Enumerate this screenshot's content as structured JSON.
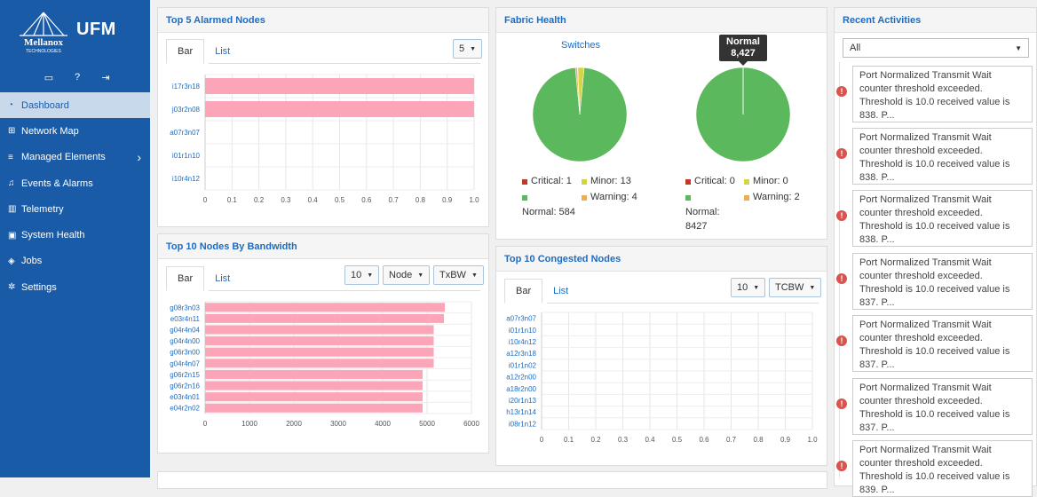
{
  "brand": {
    "logo_text": "Mellanox TECHNOLOGIES",
    "app_name": "UFM"
  },
  "header_icons": [
    "monitor-icon",
    "help-icon",
    "logout-icon"
  ],
  "nav": [
    {
      "label": "Dashboard",
      "icon": "dashboard-icon",
      "active": true
    },
    {
      "label": "Network Map",
      "icon": "sitemap-icon"
    },
    {
      "label": "Managed Elements",
      "icon": "list-icon",
      "has_submenu": true
    },
    {
      "label": "Events & Alarms",
      "icon": "bell-icon"
    },
    {
      "label": "Telemetry",
      "icon": "bar-chart-icon"
    },
    {
      "label": "System Health",
      "icon": "medkit-icon"
    },
    {
      "label": "Jobs",
      "icon": "cube-icon"
    },
    {
      "label": "Settings",
      "icon": "gear-icon"
    }
  ],
  "alarmed": {
    "title": "Top 5 Alarmed Nodes",
    "tab_bar": "Bar",
    "tab_list": "List",
    "count_value": "5"
  },
  "bandwidth": {
    "title": "Top 10 Nodes By Bandwidth",
    "tab_bar": "Bar",
    "tab_list": "List",
    "count_value": "10",
    "type_value": "Node",
    "metric_value": "TxBW"
  },
  "fabric": {
    "title": "Fabric Health",
    "switches_label": "Switches",
    "tooltip_title": "Normal",
    "tooltip_value": "8,427",
    "left_legend": {
      "critical": "Critical: 1",
      "minor": "Minor: 13",
      "normal": "Normal: 584",
      "warning": "Warning: 4"
    },
    "right_legend": {
      "critical": "Critical: 0",
      "minor": "Minor: 0",
      "normal_1": "Normal:",
      "normal_2": "8427",
      "warning": "Warning: 2"
    }
  },
  "congested": {
    "title": "Top 10 Congested Nodes",
    "tab_bar": "Bar",
    "tab_list": "List",
    "count_value": "10",
    "metric_value": "TCBW"
  },
  "activities": {
    "title": "Recent Activities",
    "filter_value": "All",
    "items": [
      "Port Normalized Transmit Wait counter threshold exceeded. Threshold is 10.0 received value is 838. P...",
      "Port Normalized Transmit Wait counter threshold exceeded. Threshold is 10.0 received value is 838. P...",
      "Port Normalized Transmit Wait counter threshold exceeded. Threshold is 10.0 received value is 838. P...",
      "Port Normalized Transmit Wait counter threshold exceeded. Threshold is 10.0 received value is 837. P...",
      "Port Normalized Transmit Wait counter threshold exceeded. Threshold is 10.0 received value is 837. P...",
      "Port Normalized Transmit Wait counter threshold exceeded. Threshold is 10.0 received value is 837. P...",
      "Port Normalized Transmit Wait counter threshold exceeded. Threshold is 10.0 received value is 839. P..."
    ]
  },
  "colors": {
    "sidebar": "#1a5ba8",
    "bar": "#fca4b8",
    "normal": "#5cb85c",
    "minor": "#d4d44a",
    "critical": "#c0392b",
    "warning": "#f0ad4e",
    "link": "#1e6cc1"
  },
  "chart_data": [
    {
      "type": "bar",
      "orientation": "horizontal",
      "title": "Top 5 Alarmed Nodes",
      "categories": [
        "i17r3n18",
        "j03r2n08",
        "a07r3n07",
        "i01r1n10",
        "i10r4n12"
      ],
      "values": [
        1,
        1,
        0,
        0,
        0
      ],
      "xlim": [
        0,
        1
      ],
      "xticks": [
        "0",
        "0.1",
        "0.2",
        "0.3",
        "0.4",
        "0.5",
        "0.6",
        "0.7",
        "0.8",
        "0.9",
        "1.0"
      ]
    },
    {
      "type": "bar",
      "orientation": "horizontal",
      "title": "Top 10 Nodes By Bandwidth",
      "categories": [
        "g08r3n03",
        "e03r4n11",
        "g04r4n04",
        "g04r4n00",
        "g06r3n00",
        "g04r4n07",
        "g06r2n15",
        "g06r2n16",
        "e03r4n01",
        "e04r2n02"
      ],
      "values": [
        5400,
        5380,
        5150,
        5150,
        5150,
        5150,
        4900,
        4900,
        4900,
        4900
      ],
      "xlim": [
        0,
        6000
      ],
      "xticks": [
        "0",
        "1000",
        "2000",
        "3000",
        "4000",
        "5000",
        "6000"
      ]
    },
    {
      "type": "pie",
      "title": "Switches",
      "labels": [
        "Critical",
        "Minor",
        "Normal",
        "Warning"
      ],
      "values": [
        1,
        13,
        584,
        4
      ]
    },
    {
      "type": "pie",
      "labels": [
        "Critical",
        "Minor",
        "Normal",
        "Warning"
      ],
      "values": [
        0,
        0,
        8427,
        2
      ]
    },
    {
      "type": "bar",
      "orientation": "horizontal",
      "title": "Top 10 Congested Nodes",
      "categories": [
        "a07r3n07",
        "i01r1n10",
        "i10r4n12",
        "a12r3n18",
        "i01r1n02",
        "a12r2n00",
        "a18r2n00",
        "i20r1n13",
        "h13r1n14",
        "i08r1n12"
      ],
      "values": [
        0,
        0,
        0,
        0,
        0,
        0,
        0,
        0,
        0,
        0
      ],
      "xlim": [
        0,
        1
      ],
      "xticks": [
        "0",
        "0.1",
        "0.2",
        "0.3",
        "0.4",
        "0.5",
        "0.6",
        "0.7",
        "0.8",
        "0.9",
        "1.0"
      ]
    }
  ]
}
